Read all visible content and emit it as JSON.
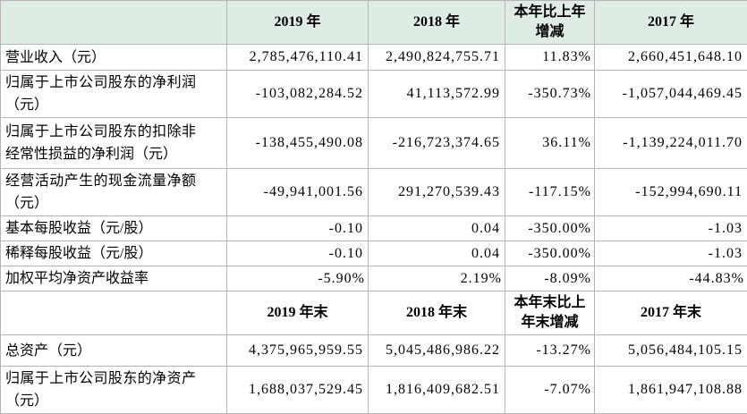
{
  "table": {
    "colors": {
      "header_bg": "#dfece3",
      "grid": "#b5b5b5",
      "text": "#000000"
    },
    "header_row_annual": {
      "col_label": "",
      "col_2019": "2019 年",
      "col_2018": "2018 年",
      "col_change": "本年比上年增减",
      "col_2017": "2017 年"
    },
    "annual_rows": [
      {
        "label": "营业收入（元）",
        "y2019": "2,785,476,110.41",
        "y2018": "2,490,824,755.71",
        "change": "11.83%",
        "y2017": "2,660,451,648.10"
      },
      {
        "label": "归属于上市公司股东的净利润（元）",
        "y2019": "-103,082,284.52",
        "y2018": "41,113,572.99",
        "change": "-350.73%",
        "y2017": "-1,057,044,469.45"
      },
      {
        "label": "归属于上市公司股东的扣除非经常性损益的净利润（元）",
        "y2019": "-138,455,490.08",
        "y2018": "-216,723,374.65",
        "change": "36.11%",
        "y2017": "-1,139,224,011.70"
      },
      {
        "label": "经营活动产生的现金流量净额（元）",
        "y2019": "-49,941,001.56",
        "y2018": "291,270,539.43",
        "change": "-117.15%",
        "y2017": "-152,994,690.11"
      },
      {
        "label": "基本每股收益（元/股）",
        "y2019": "-0.10",
        "y2018": "0.04",
        "change": "-350.00%",
        "y2017": "-1.03"
      },
      {
        "label": "稀释每股收益（元/股）",
        "y2019": "-0.10",
        "y2018": "0.04",
        "change": "-350.00%",
        "y2017": "-1.03"
      },
      {
        "label": "加权平均净资产收益率",
        "y2019": "-5.90%",
        "y2018": "2.19%",
        "change": "-8.09%",
        "y2017": "-44.83%"
      }
    ],
    "header_row_year_end": {
      "col_label": "",
      "col_2019": "2019 年末",
      "col_2018": "2018 年末",
      "col_change": "本年末比上年末增减",
      "col_2017": "2017 年末"
    },
    "year_end_rows": [
      {
        "label": "总资产（元）",
        "y2019": "4,375,965,959.55",
        "y2018": "5,045,486,986.22",
        "change": "-13.27%",
        "y2017": "5,056,484,105.15"
      },
      {
        "label": "归属于上市公司股东的净资产（元）",
        "y2019": "1,688,037,529.45",
        "y2018": "1,816,409,682.51",
        "change": "-7.07%",
        "y2017": "1,861,947,108.88"
      }
    ]
  }
}
